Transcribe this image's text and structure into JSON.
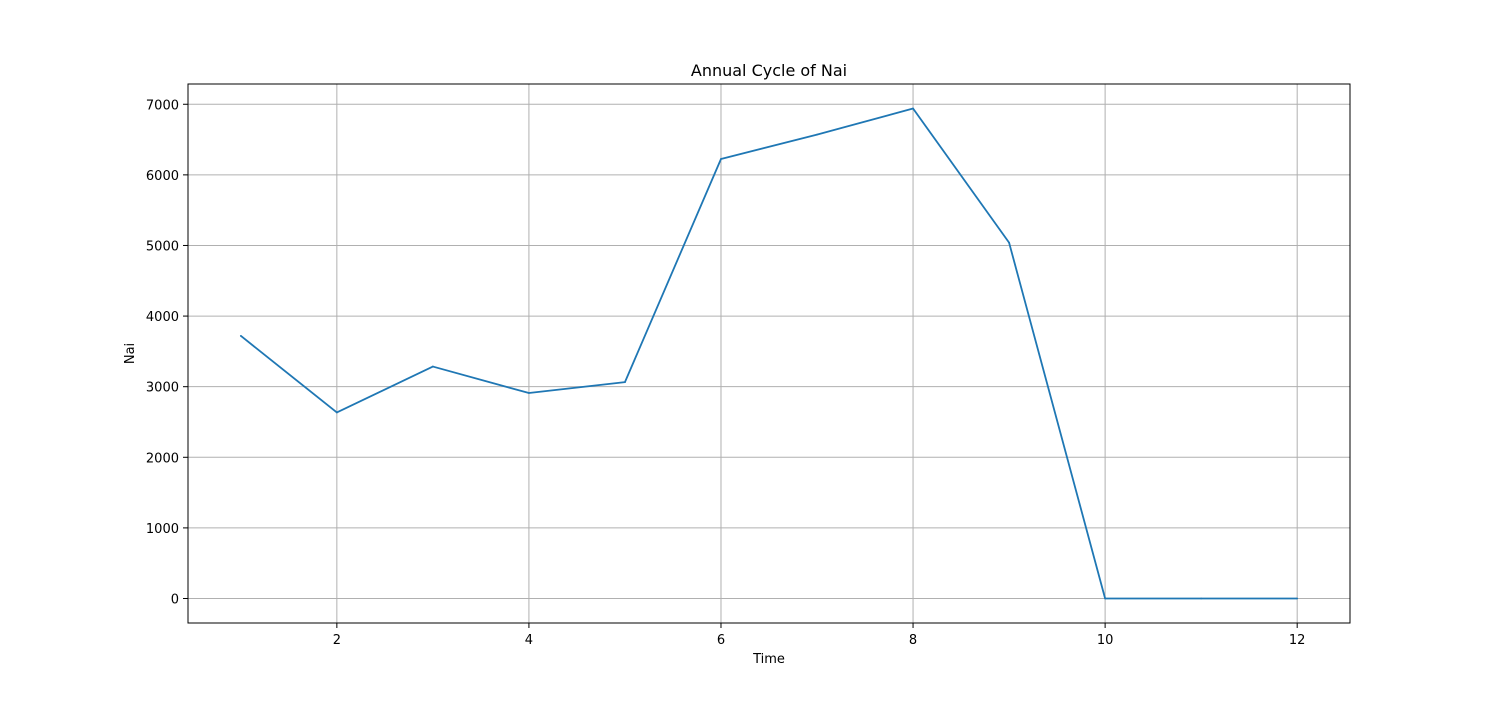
{
  "chart_data": {
    "type": "line",
    "title": "Annual Cycle of Nai",
    "xlabel": "Time",
    "ylabel": "Nai",
    "x": [
      1,
      2,
      3,
      4,
      5,
      6,
      7,
      8,
      9,
      10,
      11,
      12
    ],
    "series": [
      {
        "values": [
          3720,
          2635,
          3285,
          2910,
          3065,
          6225,
          6570,
          6940,
          5040,
          0,
          0,
          0
        ],
        "color": "#1f77b4"
      }
    ],
    "xlim": [
      0.45,
      12.55
    ],
    "ylim": [
      -347,
      7287
    ],
    "xticks": [
      2,
      4,
      6,
      8,
      10,
      12
    ],
    "yticks": [
      0,
      1000,
      2000,
      3000,
      4000,
      5000,
      6000,
      7000
    ],
    "grid": true,
    "grid_color": "#b0b0b0",
    "legend": "none"
  }
}
